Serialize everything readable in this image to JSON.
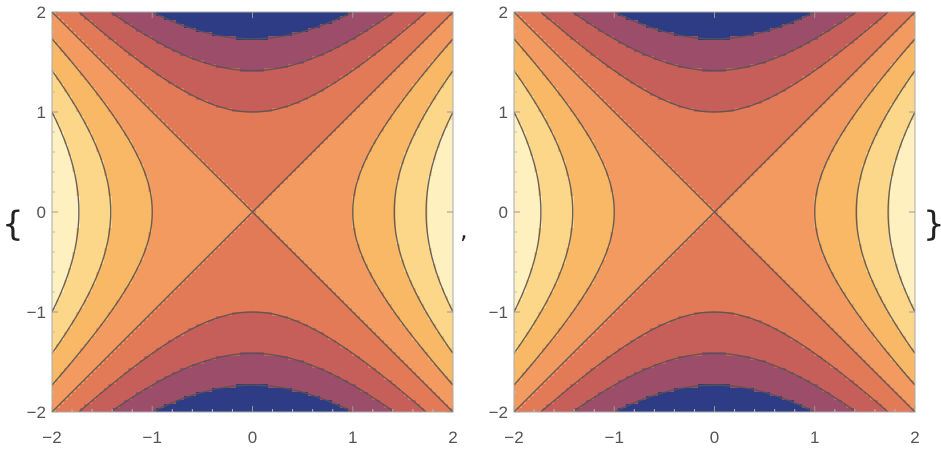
{
  "output": {
    "open_brace": "{",
    "separator": ",",
    "close_brace": "}"
  },
  "chart_data": [
    {
      "type": "contour",
      "function": "x^2 - y^2",
      "xlim": [
        -2,
        2
      ],
      "ylim": [
        -2,
        2
      ],
      "x_ticks": [
        "−2",
        "−1",
        "0",
        "1",
        "2"
      ],
      "y_ticks": [
        "−2",
        "−1",
        "0",
        "1",
        "2"
      ],
      "contour_levels": [
        -3,
        -2,
        -1,
        0,
        1,
        2,
        3
      ],
      "band_colors": [
        "#2e3c86",
        "#9b4d6a",
        "#c65f5a",
        "#e27a58",
        "#f29a5f",
        "#f8b866",
        "#fcd78a",
        "#fff0c0"
      ],
      "line_color": "#5a5350",
      "frame_color": "#aaaaaa"
    },
    {
      "type": "contour",
      "function": "x^2 - y^2",
      "xlim": [
        -2,
        2
      ],
      "ylim": [
        -2,
        2
      ],
      "x_ticks": [
        "−2",
        "−1",
        "0",
        "1",
        "2"
      ],
      "y_ticks": [
        "−2",
        "−1",
        "0",
        "1",
        "2"
      ],
      "contour_levels": [
        -3,
        -2,
        -1,
        0,
        1,
        2,
        3
      ],
      "band_colors": [
        "#2e3c86",
        "#9b4d6a",
        "#c65f5a",
        "#e27a58",
        "#f29a5f",
        "#f8b866",
        "#fcd78a",
        "#fff0c0"
      ],
      "line_color": "#5a5350",
      "frame_color": "#aaaaaa"
    }
  ]
}
